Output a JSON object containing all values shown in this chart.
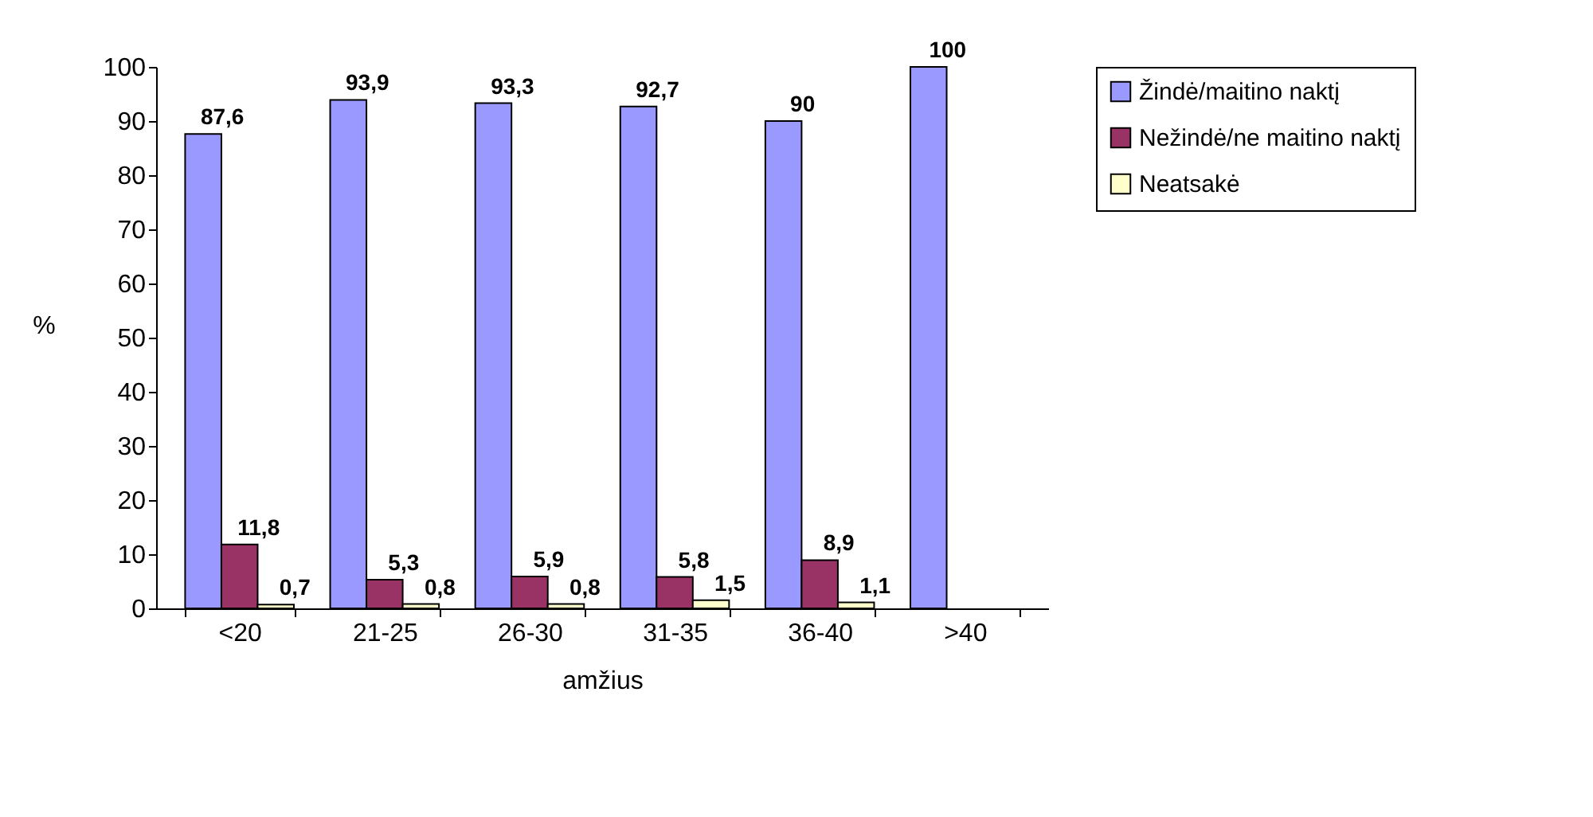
{
  "chart_data": {
    "type": "bar",
    "xlabel": "amžius",
    "ylabel": "%",
    "categories": [
      "<20",
      "21-25",
      "26-30",
      "31-35",
      "36-40",
      ">40"
    ],
    "series": [
      {
        "name": "Žindė/maitino naktį",
        "color": "#9999ff",
        "values": [
          87.6,
          93.9,
          93.3,
          92.7,
          90,
          100
        ],
        "value_labels": [
          "87,6",
          "93,9",
          "93,3",
          "92,7",
          "90",
          "100"
        ]
      },
      {
        "name": "Nežindė/ne maitino naktį",
        "color": "#993366",
        "values": [
          11.8,
          5.3,
          5.9,
          5.8,
          8.9,
          null
        ],
        "value_labels": [
          "11,8",
          "5,3",
          "5,9",
          "5,8",
          "8,9",
          null
        ]
      },
      {
        "name": "Neatsakė",
        "color": "#ffffcc",
        "values": [
          0.7,
          0.8,
          0.8,
          1.5,
          1.1,
          null
        ],
        "value_labels": [
          "0,7",
          "0,8",
          "0,8",
          "1,5",
          "1,1",
          null
        ]
      }
    ],
    "ylim": [
      0,
      100
    ],
    "yticks": [
      0,
      10,
      20,
      30,
      40,
      50,
      60,
      70,
      80,
      90,
      100
    ],
    "grid": false,
    "legend": "right"
  }
}
